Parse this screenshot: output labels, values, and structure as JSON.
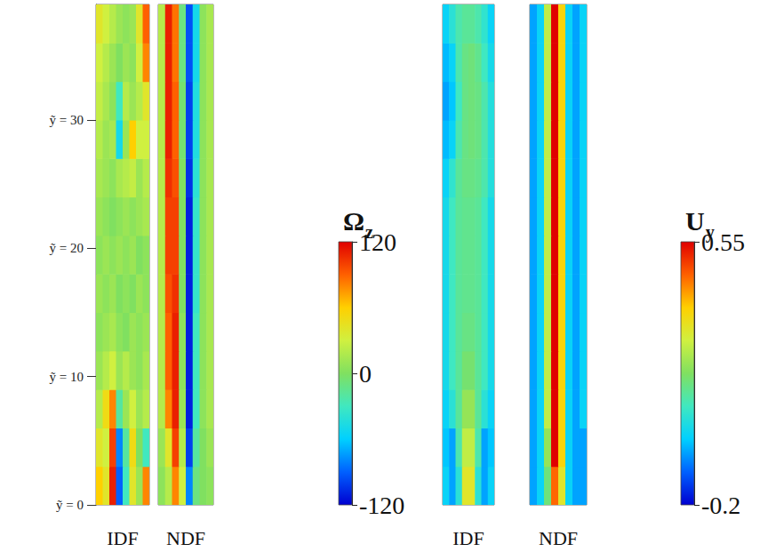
{
  "chart_data": [
    {
      "type": "heatmap",
      "colorbar": {
        "title": {
          "symbol": "Ω",
          "subscript": "z"
        },
        "range": [
          -120,
          120
        ],
        "ticks": [
          -120,
          0,
          120
        ]
      },
      "panels": [
        {
          "label": "IDF",
          "tick_labels": "y",
          "x": [
            0.5,
            1.5,
            2.5,
            3.5,
            4.5,
            5.5,
            6.5,
            7.5
          ],
          "xlim": [
            0,
            8
          ],
          "y": [
            1.5,
            4.5,
            7.5,
            10.5,
            13.5,
            16.5,
            19.5,
            22.5,
            25.5,
            28.5,
            31.5,
            34.5,
            37.5
          ],
          "ylim": [
            0,
            39
          ],
          "yticks": [
            {
              "value": 0,
              "label": "ỹ = 0"
            },
            {
              "value": 10,
              "label": "ỹ = 10"
            },
            {
              "value": 20,
              "label": "ỹ = 20"
            },
            {
              "value": 30,
              "label": "ỹ = 30"
            }
          ],
          "cells": [
            [
              60,
              40,
              110,
              -90,
              -30,
              40,
              10,
              80
            ],
            [
              40,
              30,
              100,
              -80,
              -20,
              50,
              0,
              -30
            ],
            [
              20,
              50,
              80,
              -20,
              10,
              30,
              10,
              20
            ],
            [
              10,
              20,
              30,
              10,
              20,
              10,
              5,
              15
            ],
            [
              5,
              10,
              15,
              5,
              0,
              10,
              5,
              10
            ],
            [
              10,
              5,
              10,
              0,
              5,
              0,
              10,
              5
            ],
            [
              5,
              10,
              5,
              10,
              5,
              10,
              0,
              5
            ],
            [
              10,
              5,
              0,
              5,
              10,
              5,
              10,
              15
            ],
            [
              15,
              10,
              5,
              15,
              20,
              25,
              10,
              20
            ],
            [
              20,
              10,
              15,
              -50,
              10,
              60,
              30,
              30
            ],
            [
              25,
              15,
              5,
              -30,
              20,
              10,
              20,
              40
            ],
            [
              30,
              20,
              10,
              0,
              10,
              5,
              30,
              80
            ],
            [
              40,
              30,
              20,
              10,
              5,
              10,
              40,
              90
            ]
          ]
        },
        {
          "label": "NDF",
          "tick_labels": false,
          "x": [
            0.5,
            1.5,
            2.5,
            3.5,
            4.5,
            5.5,
            6.5,
            7.5
          ],
          "xlim": [
            0,
            8
          ],
          "y": [
            1.5,
            4.5,
            7.5,
            10.5,
            13.5,
            16.5,
            19.5,
            22.5,
            25.5,
            28.5,
            31.5,
            34.5,
            37.5
          ],
          "ylim": [
            0,
            39
          ],
          "cells": [
            [
              5,
              20,
              80,
              30,
              -80,
              -10,
              0,
              5
            ],
            [
              10,
              40,
              100,
              20,
              -100,
              -20,
              0,
              10
            ],
            [
              20,
              80,
              110,
              10,
              -110,
              -30,
              5,
              15
            ],
            [
              20,
              90,
              110,
              5,
              -110,
              -30,
              5,
              15
            ],
            [
              20,
              90,
              110,
              5,
              -110,
              -30,
              5,
              15
            ],
            [
              20,
              95,
              105,
              0,
              -110,
              -35,
              5,
              15
            ],
            [
              20,
              100,
              100,
              0,
              -110,
              -35,
              5,
              15
            ],
            [
              20,
              100,
              100,
              0,
              -110,
              -35,
              5,
              15
            ],
            [
              20,
              105,
              95,
              0,
              -105,
              -40,
              5,
              15
            ],
            [
              20,
              110,
              90,
              -5,
              -100,
              -45,
              5,
              15
            ],
            [
              20,
              110,
              90,
              -5,
              -100,
              -45,
              5,
              15
            ],
            [
              20,
              110,
              85,
              -10,
              -95,
              -50,
              5,
              15
            ],
            [
              20,
              110,
              85,
              -10,
              -95,
              -50,
              5,
              15
            ]
          ]
        }
      ]
    },
    {
      "type": "heatmap",
      "colorbar": {
        "title": {
          "symbol": "U",
          "subscript": "y"
        },
        "range": [
          -0.2,
          0.55
        ],
        "ticks": [
          -0.2,
          0.55
        ]
      },
      "panels": [
        {
          "label": "IDF",
          "tick_labels": false,
          "x": [
            0.5,
            1.5,
            2.5,
            3.5,
            4.5,
            5.5,
            6.5,
            7.5
          ],
          "xlim": [
            0,
            8
          ],
          "y": [
            1.5,
            4.5,
            7.5,
            10.5,
            13.5,
            16.5,
            19.5,
            22.5,
            25.5,
            28.5,
            31.5,
            34.5,
            37.5
          ],
          "ylim": [
            0,
            39
          ],
          "cells": [
            [
              0.0,
              -0.05,
              0.05,
              0.3,
              0.3,
              0.05,
              -0.05,
              0.0
            ],
            [
              -0.02,
              -0.05,
              0.1,
              0.25,
              0.25,
              0.1,
              -0.05,
              -0.02
            ],
            [
              0.0,
              0.05,
              0.12,
              0.2,
              0.2,
              0.12,
              0.05,
              0.0
            ],
            [
              0.02,
              0.08,
              0.12,
              0.16,
              0.16,
              0.12,
              0.08,
              0.02
            ],
            [
              0.02,
              0.08,
              0.12,
              0.14,
              0.14,
              0.12,
              0.08,
              0.02
            ],
            [
              0.02,
              0.08,
              0.12,
              0.13,
              0.13,
              0.12,
              0.08,
              0.02
            ],
            [
              0.02,
              0.08,
              0.12,
              0.13,
              0.13,
              0.12,
              0.08,
              0.02
            ],
            [
              0.02,
              0.08,
              0.12,
              0.13,
              0.13,
              0.12,
              0.08,
              0.02
            ],
            [
              0.0,
              0.06,
              0.12,
              0.14,
              0.14,
              0.13,
              0.1,
              0.04
            ],
            [
              -0.03,
              0.0,
              0.1,
              0.14,
              0.15,
              0.14,
              0.1,
              0.04
            ],
            [
              -0.05,
              -0.02,
              0.08,
              0.14,
              0.15,
              0.14,
              0.1,
              0.04
            ],
            [
              -0.03,
              0.0,
              0.1,
              0.14,
              0.15,
              0.13,
              0.08,
              0.02
            ],
            [
              0.0,
              0.05,
              0.1,
              0.12,
              0.12,
              0.1,
              0.06,
              0.0
            ]
          ]
        },
        {
          "label": "NDF",
          "tick_labels": false,
          "x": [
            0.5,
            1.5,
            2.5,
            3.5,
            4.5,
            5.5,
            6.5,
            7.5
          ],
          "xlim": [
            0,
            8
          ],
          "y": [
            1.5,
            4.5,
            7.5,
            10.5,
            13.5,
            16.5,
            19.5,
            22.5,
            25.5,
            28.5,
            31.5,
            34.5,
            37.5
          ],
          "ylim": [
            0,
            39
          ],
          "cells": [
            [
              -0.05,
              0.0,
              0.15,
              0.45,
              0.3,
              0.0,
              -0.05,
              -0.05
            ],
            [
              -0.05,
              0.0,
              0.2,
              0.55,
              0.35,
              0.0,
              -0.05,
              -0.05
            ],
            [
              -0.05,
              0.0,
              0.25,
              0.55,
              0.35,
              0.0,
              -0.05,
              0.0
            ],
            [
              -0.05,
              0.0,
              0.25,
              0.55,
              0.35,
              0.0,
              -0.05,
              0.0
            ],
            [
              -0.05,
              0.0,
              0.25,
              0.55,
              0.35,
              0.0,
              -0.05,
              0.0
            ],
            [
              -0.05,
              0.0,
              0.25,
              0.55,
              0.35,
              0.0,
              -0.05,
              0.0
            ],
            [
              -0.05,
              0.0,
              0.25,
              0.55,
              0.35,
              0.0,
              -0.05,
              0.0
            ],
            [
              -0.05,
              0.0,
              0.25,
              0.55,
              0.35,
              0.0,
              -0.05,
              0.0
            ],
            [
              -0.05,
              0.0,
              0.25,
              0.55,
              0.35,
              0.0,
              -0.05,
              0.0
            ],
            [
              -0.05,
              0.0,
              0.25,
              0.55,
              0.35,
              0.0,
              -0.05,
              0.0
            ],
            [
              -0.05,
              0.0,
              0.25,
              0.55,
              0.35,
              0.0,
              -0.05,
              0.0
            ],
            [
              -0.05,
              0.0,
              0.25,
              0.55,
              0.35,
              0.0,
              -0.05,
              0.0
            ],
            [
              -0.05,
              0.0,
              0.25,
              0.55,
              0.35,
              0.0,
              -0.05,
              0.0
            ]
          ]
        }
      ]
    }
  ]
}
